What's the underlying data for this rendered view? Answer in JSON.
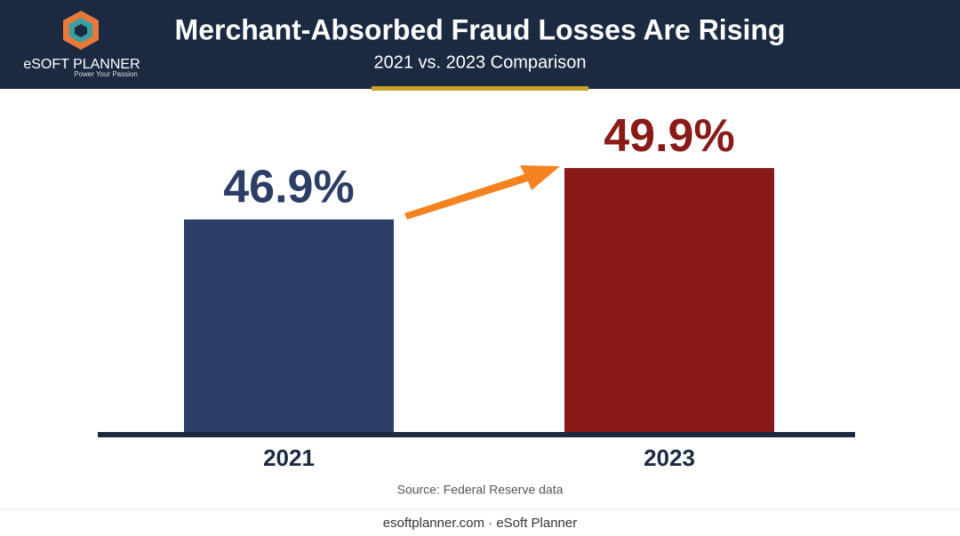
{
  "chart_data": {
    "type": "bar",
    "title": "Merchant-Absorbed Fraud Losses Are Rising",
    "subtitle": "2021 vs. 2023 Comparison",
    "categories": [
      "2021",
      "2023"
    ],
    "values": [
      46.9,
      49.9
    ],
    "value_labels": [
      "46.9%",
      "49.9%"
    ],
    "colors": [
      "#2c3d66",
      "#891a17"
    ],
    "ylim": [
      34.5,
      54
    ],
    "source": "Source: Federal Reserve data"
  },
  "logo": {
    "name": "eSOFT PLANNER",
    "tagline": "Power Your Passion"
  },
  "footer": "esoftplanner.com · eSoft Planner"
}
